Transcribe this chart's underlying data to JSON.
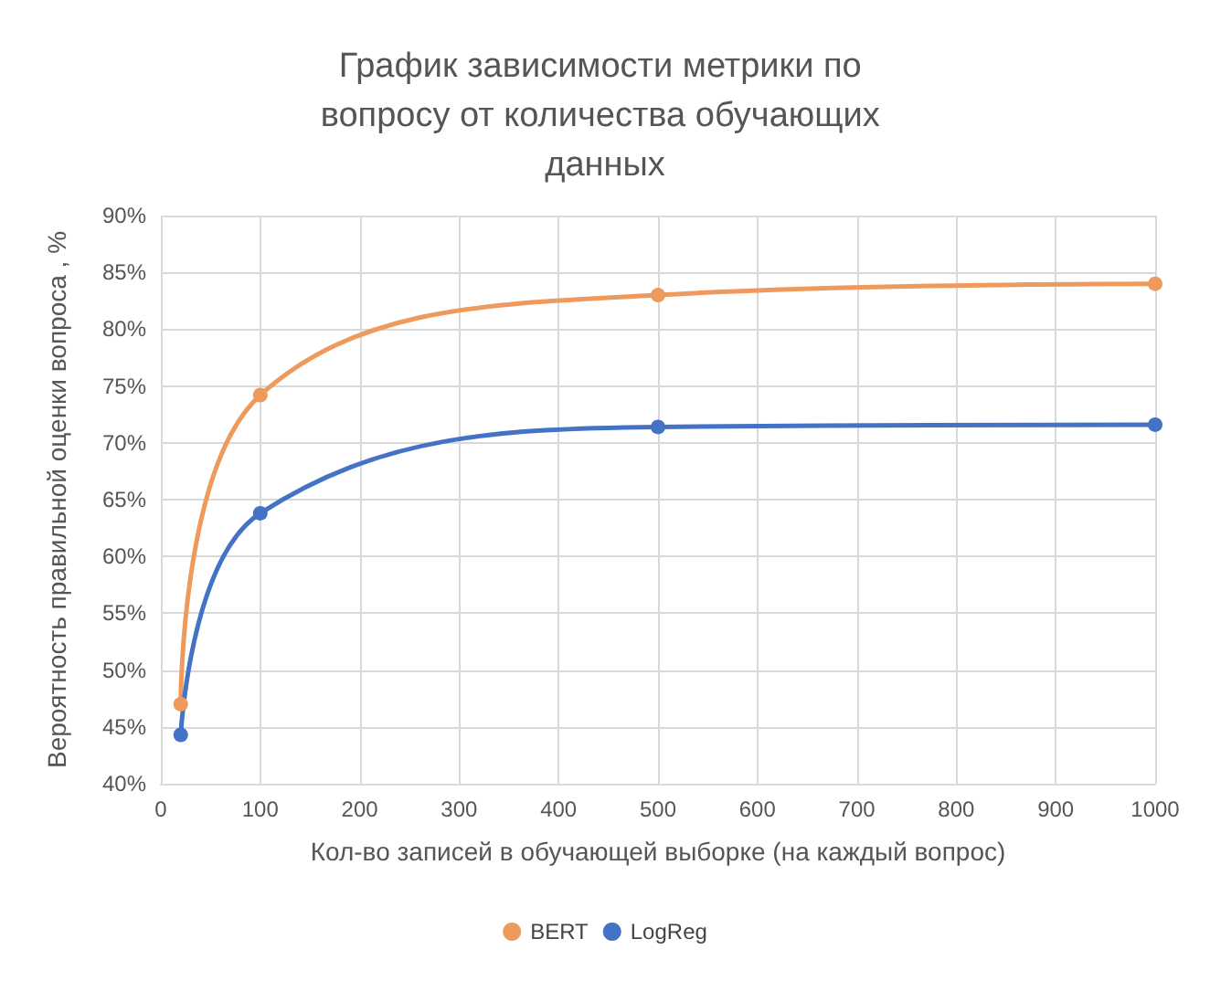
{
  "chart_data": {
    "type": "line",
    "title": "График зависимости метрики по вопросу от количества обучающих данных",
    "xlabel": "Кол-во записей в обучающей выборке (на каждый вопрос)",
    "ylabel": "Вероятность правильной оценки вопроса , %",
    "x": [
      20,
      100,
      500,
      1000
    ],
    "series": [
      {
        "name": "BERT",
        "color": "#ed9a5c",
        "values": [
          47,
          74.2,
          83,
          84
        ]
      },
      {
        "name": "LogReg",
        "color": "#4472c4",
        "values": [
          44.3,
          63.8,
          71.4,
          71.6
        ]
      }
    ],
    "xlim": [
      0,
      1000
    ],
    "xticks": [
      0,
      100,
      200,
      300,
      400,
      500,
      600,
      700,
      800,
      900,
      1000
    ],
    "ylim": [
      40,
      90
    ],
    "yticks": [
      {
        "value": 40,
        "label": "40%"
      },
      {
        "value": 45,
        "label": "45%"
      },
      {
        "value": 50,
        "label": "50%"
      },
      {
        "value": 55,
        "label": "55%"
      },
      {
        "value": 60,
        "label": "60%"
      },
      {
        "value": 65,
        "label": "65%"
      },
      {
        "value": 70,
        "label": "70%"
      },
      {
        "value": 75,
        "label": "75%"
      },
      {
        "value": 80,
        "label": "80%"
      },
      {
        "value": 85,
        "label": "85%"
      },
      {
        "value": 90,
        "label": "90%"
      }
    ],
    "grid": true,
    "legend": "bottom",
    "marker": "circle",
    "line_style": "solid"
  }
}
